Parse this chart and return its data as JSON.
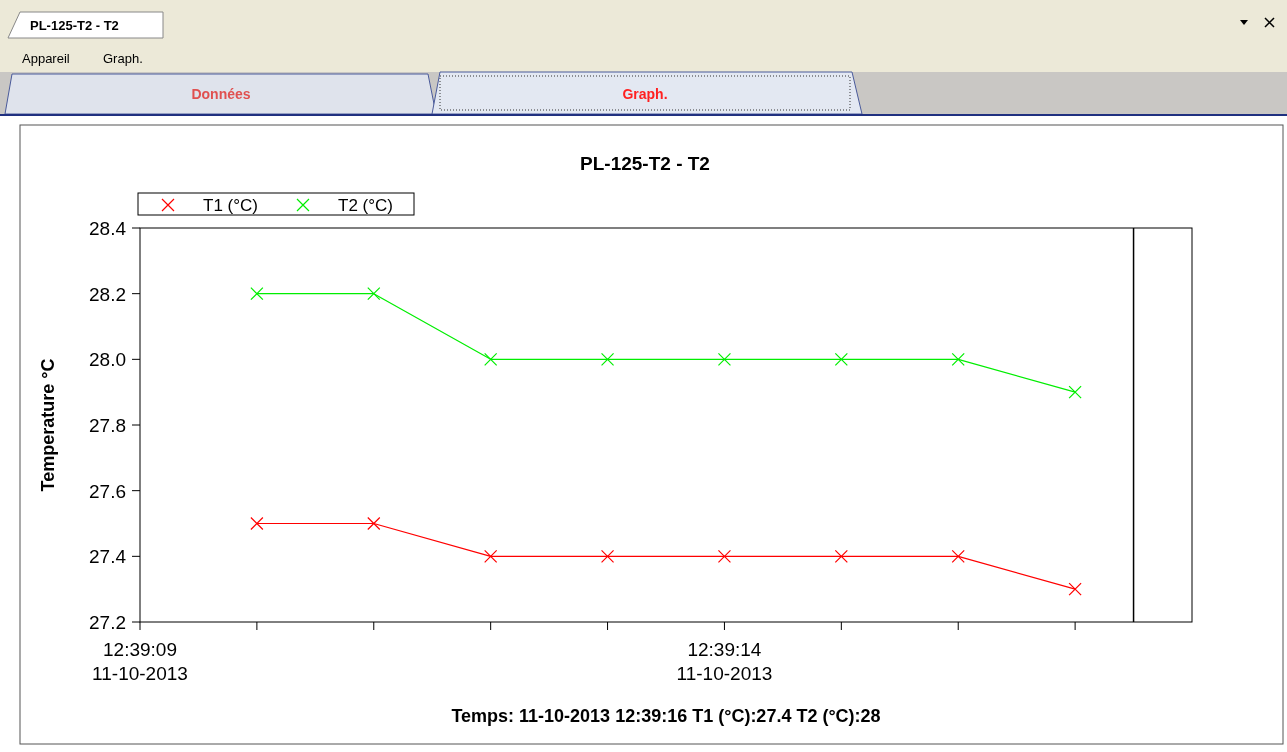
{
  "chart_data": {
    "type": "line",
    "title": "PL-125-T2 - T2",
    "ylabel": "Temperature °C",
    "annotations": [
      "PL-125-T2 - T2",
      "Appareil",
      "Graph.",
      "Données",
      "Graph.",
      "Temps: 11-10-2013 12:39:16 T1 (°C):27.4 T2 (°C):28"
    ],
    "x": [
      "2013-10-11T12:39:10",
      "2013-10-11T12:39:11",
      "2013-10-11T12:39:12",
      "2013-10-11T12:39:13",
      "2013-10-11T12:39:14",
      "2013-10-11T12:39:15",
      "2013-10-11T12:39:16",
      "2013-10-11T12:39:17"
    ],
    "series": [
      {
        "name": "T1 (°C)",
        "color": "#ff0000",
        "values": [
          27.5,
          27.5,
          27.4,
          27.4,
          27.4,
          27.4,
          27.4,
          27.3
        ]
      },
      {
        "name": "T2 (°C)",
        "color": "#00ee00",
        "values": [
          28.2,
          28.2,
          28.0,
          28.0,
          28.0,
          28.0,
          28.0,
          27.9
        ]
      }
    ],
    "xlim": [
      "2013-10-11T12:39:09",
      "2013-10-11T12:39:18"
    ],
    "xticks": [
      {
        "value": "2013-10-11T12:39:09",
        "label": "12:39:09\n11-10-2013"
      },
      {
        "value": "2013-10-11T12:39:10",
        "label": null
      },
      {
        "value": "2013-10-11T12:39:11",
        "label": null
      },
      {
        "value": "2013-10-11T12:39:12",
        "label": null
      },
      {
        "value": "2013-10-11T12:39:13",
        "label": null
      },
      {
        "value": "2013-10-11T12:39:14",
        "label": "12:39:14\n11-10-2013"
      },
      {
        "value": "2013-10-11T12:39:15",
        "label": null
      },
      {
        "value": "2013-10-11T12:39:16",
        "label": null
      },
      {
        "value": "2013-10-11T12:39:17",
        "label": null
      }
    ],
    "ylim": [
      27.2,
      28.4
    ],
    "yticks": [
      27.2,
      27.4,
      27.6,
      27.8,
      {
        "value": 28,
        "label": "28.0"
      },
      28.2,
      28.4
    ],
    "ref_lines": [
      {
        "axis": "x",
        "value": "2013-10-11T12:39:17.5",
        "label": null,
        "color": "#000000"
      }
    ],
    "grid": false,
    "legend": "top left",
    "marker": "cross",
    "line_style": "solid"
  }
}
